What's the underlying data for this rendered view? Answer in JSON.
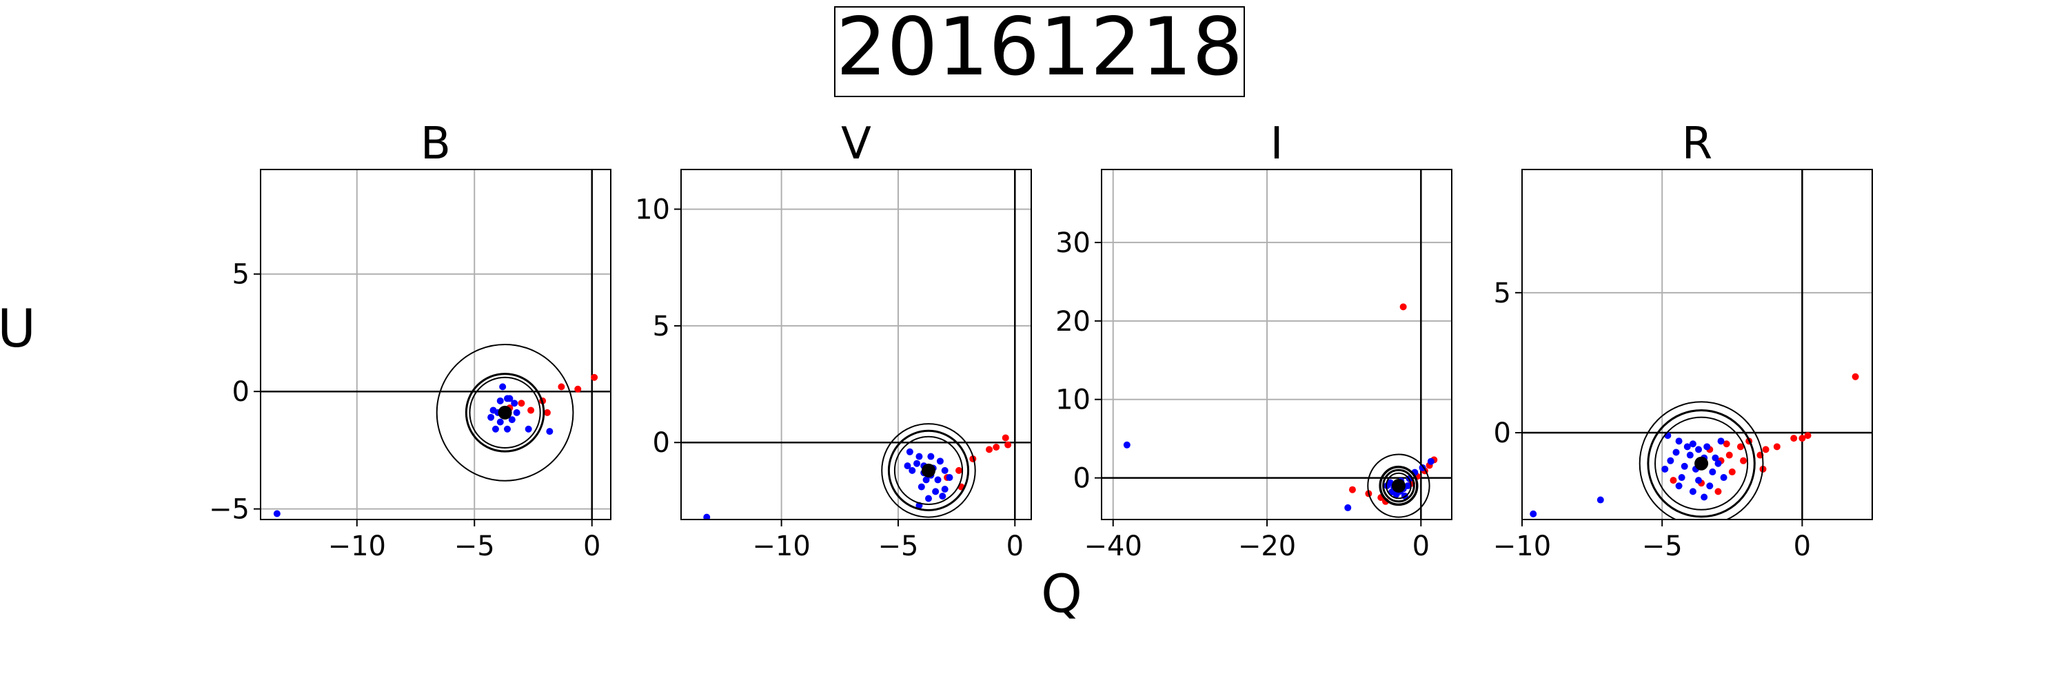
{
  "figure": {
    "title": "20161218",
    "xlabel": "Q",
    "ylabel": "U"
  },
  "colors": {
    "outlier": "#ff0000",
    "inlier": "#0000ff",
    "center": "#000000",
    "grid": "#b0b0b0"
  },
  "chart_data": [
    {
      "type": "scatter",
      "title": "B",
      "xlim": [
        -14.1,
        0.8
      ],
      "ylim": [
        -5.45,
        9.45
      ],
      "xticks": [
        -10,
        -5,
        0
      ],
      "yticks": [
        -5,
        0,
        5
      ],
      "grid": true,
      "center": [
        -3.7,
        -0.9
      ],
      "circles": [
        {
          "r": 2.9,
          "w": 2
        },
        {
          "r": 1.65,
          "w": 3
        },
        {
          "r": 1.5,
          "w": 2
        }
      ],
      "series": [
        {
          "color": "outlier",
          "points": [
            [
              0.1,
              0.6
            ],
            [
              -0.6,
              0.1
            ],
            [
              -1.3,
              0.2
            ],
            [
              -2.1,
              -0.4
            ],
            [
              -1.9,
              -0.9
            ],
            [
              -2.6,
              -0.8
            ],
            [
              -3.0,
              -0.5
            ],
            [
              -3.5,
              -0.7
            ]
          ]
        },
        {
          "color": "inlier",
          "points": [
            [
              -13.4,
              -5.2
            ],
            [
              -3.8,
              0.2
            ],
            [
              -3.6,
              -0.3
            ],
            [
              -3.9,
              -0.4
            ],
            [
              -3.3,
              -0.5
            ],
            [
              -4.2,
              -0.8
            ],
            [
              -3.4,
              -1.2
            ],
            [
              -3.9,
              -1.3
            ],
            [
              -3.6,
              -1.6
            ],
            [
              -4.1,
              -1.6
            ],
            [
              -2.7,
              -1.6
            ],
            [
              -1.8,
              -1.7
            ],
            [
              -4.0,
              -0.9
            ],
            [
              -3.2,
              -0.9
            ],
            [
              -3.7,
              -1.0
            ],
            [
              -3.5,
              -0.3
            ],
            [
              -4.3,
              -1.1
            ]
          ]
        }
      ]
    },
    {
      "type": "scatter",
      "title": "V",
      "xlim": [
        -14.3,
        0.7
      ],
      "ylim": [
        -3.3,
        11.7
      ],
      "xticks": [
        -10,
        -5,
        0
      ],
      "yticks": [
        0,
        5,
        10
      ],
      "grid": true,
      "center": [
        -3.7,
        -1.2
      ],
      "circles": [
        {
          "r": 2.0,
          "w": 2
        },
        {
          "r": 1.7,
          "w": 3
        },
        {
          "r": 1.45,
          "w": 2
        }
      ],
      "series": [
        {
          "color": "outlier",
          "points": [
            [
              -0.4,
              0.2
            ],
            [
              -0.3,
              -0.1
            ],
            [
              -0.8,
              -0.2
            ],
            [
              -1.1,
              -0.3
            ],
            [
              -1.8,
              -0.7
            ],
            [
              -2.4,
              -1.2
            ],
            [
              -2.9,
              -1.5
            ],
            [
              -2.3,
              -1.9
            ]
          ]
        },
        {
          "color": "inlier",
          "points": [
            [
              -13.2,
              -3.2
            ],
            [
              -4.5,
              -0.4
            ],
            [
              -4.1,
              -0.6
            ],
            [
              -3.6,
              -0.6
            ],
            [
              -3.2,
              -0.8
            ],
            [
              -4.2,
              -0.9
            ],
            [
              -3.9,
              -1.0
            ],
            [
              -3.5,
              -1.1
            ],
            [
              -3.0,
              -1.2
            ],
            [
              -4.4,
              -1.2
            ],
            [
              -2.8,
              -1.5
            ],
            [
              -3.3,
              -1.6
            ],
            [
              -3.8,
              -1.6
            ],
            [
              -4.0,
              -1.9
            ],
            [
              -3.4,
              -2.1
            ],
            [
              -3.1,
              -2.3
            ],
            [
              -3.7,
              -2.4
            ],
            [
              -4.1,
              -2.7
            ],
            [
              -3.6,
              -1.4
            ],
            [
              -3.9,
              -1.3
            ],
            [
              -4.6,
              -1.0
            ],
            [
              -3.0,
              -2.0
            ]
          ]
        }
      ]
    },
    {
      "type": "scatter",
      "title": "I",
      "xlim": [
        -41.5,
        4.0
      ],
      "ylim": [
        -5.3,
        39.3
      ],
      "xticks": [
        -40,
        -20,
        0
      ],
      "yticks": [
        0,
        10,
        20,
        30
      ],
      "grid": true,
      "center": [
        -2.9,
        -1.0
      ],
      "circles": [
        {
          "r": 4.0,
          "w": 2
        },
        {
          "r": 2.4,
          "w": 3.5
        },
        {
          "r": 2.0,
          "w": 3
        },
        {
          "r": 1.6,
          "w": 2
        }
      ],
      "series": [
        {
          "color": "outlier",
          "points": [
            [
              -2.3,
              21.8
            ],
            [
              1.7,
              2.3
            ],
            [
              1.1,
              1.6
            ],
            [
              0.5,
              0.9
            ],
            [
              -0.5,
              0.2
            ],
            [
              -1.2,
              -0.7
            ],
            [
              -5.2,
              -2.5
            ],
            [
              -6.8,
              -2.0
            ],
            [
              -8.9,
              -1.5
            ],
            [
              -4.6,
              -3.0
            ]
          ]
        },
        {
          "color": "inlier",
          "points": [
            [
              -38.2,
              4.2
            ],
            [
              -9.5,
              -3.8
            ],
            [
              -4.0,
              -0.6
            ],
            [
              -3.5,
              -1.2
            ],
            [
              -2.9,
              -0.8
            ],
            [
              -2.3,
              -1.4
            ],
            [
              -3.2,
              -2.1
            ],
            [
              -1.7,
              -1.0
            ],
            [
              -2.7,
              -1.7
            ],
            [
              -3.8,
              -1.8
            ],
            [
              -4.4,
              -1.0
            ],
            [
              -1.5,
              -0.1
            ],
            [
              -0.8,
              0.7
            ],
            [
              0.2,
              1.3
            ],
            [
              1.3,
              2.1
            ],
            [
              -2.1,
              -2.3
            ],
            [
              -3.0,
              -1.3
            ],
            [
              -2.6,
              -0.4
            ]
          ]
        }
      ]
    },
    {
      "type": "scatter",
      "title": "R",
      "xlim": [
        -10.0,
        2.5
      ],
      "ylim": [
        -3.1,
        9.4
      ],
      "xticks": [
        -10,
        -5,
        0
      ],
      "yticks": [
        0,
        5
      ],
      "grid": true,
      "center": [
        -3.6,
        -1.1
      ],
      "circles": [
        {
          "r": 2.2,
          "w": 2
        },
        {
          "r": 1.9,
          "w": 3
        },
        {
          "r": 1.65,
          "w": 2
        }
      ],
      "series": [
        {
          "color": "outlier",
          "points": [
            [
              1.9,
              2.0
            ],
            [
              0.2,
              -0.1
            ],
            [
              -0.3,
              -0.2
            ],
            [
              0.0,
              -0.2
            ],
            [
              -0.9,
              -0.5
            ],
            [
              -1.3,
              -0.6
            ],
            [
              -1.5,
              -0.8
            ],
            [
              -1.9,
              -0.3
            ],
            [
              -2.2,
              -0.5
            ],
            [
              -2.6,
              -0.8
            ],
            [
              -2.9,
              -1.0
            ],
            [
              -2.7,
              -0.4
            ],
            [
              -3.3,
              -0.6
            ],
            [
              -2.1,
              -1.0
            ],
            [
              -2.5,
              -1.4
            ],
            [
              -3.6,
              -1.8
            ],
            [
              -4.6,
              -1.7
            ],
            [
              -3.0,
              -2.1
            ],
            [
              -1.4,
              -1.3
            ]
          ]
        },
        {
          "color": "inlier",
          "points": [
            [
              -9.6,
              -2.9
            ],
            [
              -7.2,
              -2.4
            ],
            [
              -4.8,
              -0.1
            ],
            [
              -4.4,
              -0.3
            ],
            [
              -3.9,
              -0.4
            ],
            [
              -3.4,
              -0.5
            ],
            [
              -4.5,
              -0.7
            ],
            [
              -4.0,
              -0.8
            ],
            [
              -3.5,
              -0.9
            ],
            [
              -3.1,
              -0.9
            ],
            [
              -4.7,
              -1.0
            ],
            [
              -4.2,
              -1.2
            ],
            [
              -3.8,
              -1.3
            ],
            [
              -3.2,
              -1.4
            ],
            [
              -2.8,
              -1.6
            ],
            [
              -4.3,
              -1.6
            ],
            [
              -3.7,
              -1.7
            ],
            [
              -3.3,
              -1.9
            ],
            [
              -3.9,
              -2.1
            ],
            [
              -3.5,
              -2.3
            ],
            [
              -4.1,
              -0.5
            ],
            [
              -4.9,
              -1.3
            ],
            [
              -3.0,
              -1.1
            ],
            [
              -3.7,
              -0.6
            ],
            [
              -4.4,
              -1.9
            ],
            [
              -2.9,
              -0.3
            ]
          ]
        }
      ]
    }
  ]
}
